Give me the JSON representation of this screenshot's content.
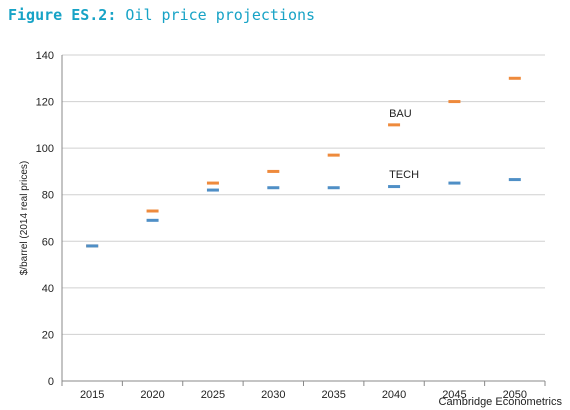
{
  "heading": {
    "label": "Figure ES.2:",
    "title": "Oil price projections"
  },
  "source": "Cambridge Econometrics",
  "colors": {
    "BAU": "#ee8a3c",
    "TECH": "#4f8fc6",
    "heading": "#17a3c6"
  },
  "chart_data": {
    "type": "scatter",
    "marker": "dash",
    "title": "Oil price projections",
    "ylabel": "$/barrel (2014 real prices)",
    "xlabel": "",
    "ylim": [
      0,
      140
    ],
    "yticks": [
      0,
      20,
      40,
      60,
      80,
      100,
      120,
      140
    ],
    "categories": [
      "2015",
      "2020",
      "2025",
      "2030",
      "2035",
      "2040",
      "2045",
      "2050"
    ],
    "grid": true,
    "legend": "in-plot labels",
    "series": [
      {
        "name": "BAU",
        "values": [
          58,
          73,
          85,
          90,
          97,
          110,
          120,
          130
        ],
        "label_at": "2040",
        "label_value": 115
      },
      {
        "name": "TECH",
        "values": [
          58,
          69,
          82,
          83,
          83,
          83.5,
          85,
          86.5
        ],
        "label_at": "2040",
        "label_value": 89
      }
    ]
  }
}
